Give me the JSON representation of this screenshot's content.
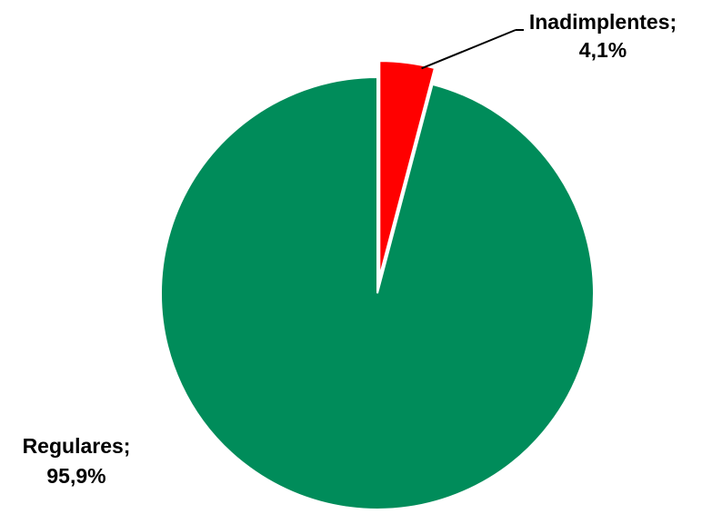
{
  "chart_data": {
    "type": "pie",
    "title": "",
    "slices": [
      {
        "label": "Inadimplentes",
        "value": 4.1,
        "label_line1": "Inadimplentes;",
        "label_line2": "4,1%",
        "color": "#ff0000",
        "exploded": true
      },
      {
        "label": "Regulares",
        "value": 95.9,
        "label_line1": "Regulares;",
        "label_line2": "95,9%",
        "color": "#008c5a",
        "exploded": false
      }
    ],
    "start_angle": "12 o'clock",
    "direction": "clockwise",
    "legend": "none"
  }
}
